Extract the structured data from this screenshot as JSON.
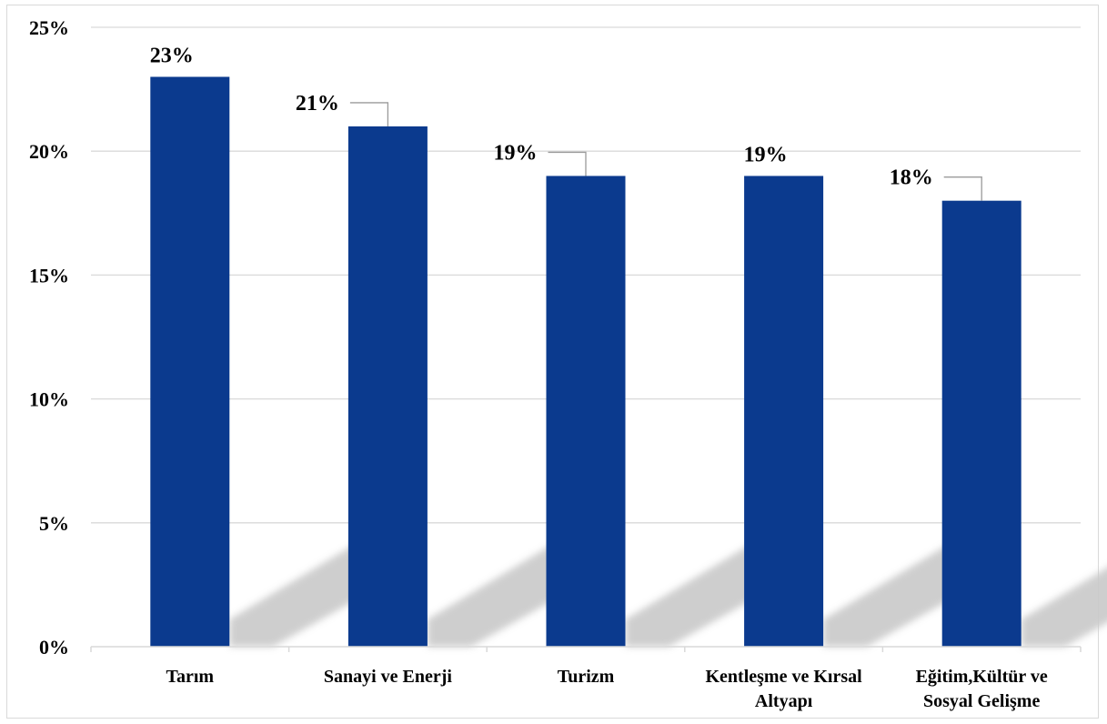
{
  "chart_data": {
    "type": "bar",
    "categories": [
      [
        "Tarım"
      ],
      [
        "Sanayi ve Enerji"
      ],
      [
        "Turizm"
      ],
      [
        "Kentleşme ve Kırsal",
        "Altyapı"
      ],
      [
        "Eğitim,Kültür ve",
        "Sosyal Gelişme"
      ]
    ],
    "values": [
      23,
      21,
      19,
      19,
      18
    ],
    "data_labels": [
      "23%",
      "21%",
      "19%",
      "19%",
      "18%"
    ],
    "ylim": [
      0,
      25
    ],
    "yticks": [
      0,
      5,
      10,
      15,
      20,
      25
    ],
    "ytick_labels": [
      "0%",
      "5%",
      "10%",
      "15%",
      "20%",
      "25%"
    ],
    "grid": true,
    "legend": "none",
    "title": "",
    "xlabel": "",
    "ylabel": "",
    "colors": {
      "bar": "#0b3a8e",
      "grid": "#d9d9d9",
      "shadow": "#c9c9c9",
      "leader": "#9a9a9a"
    }
  }
}
